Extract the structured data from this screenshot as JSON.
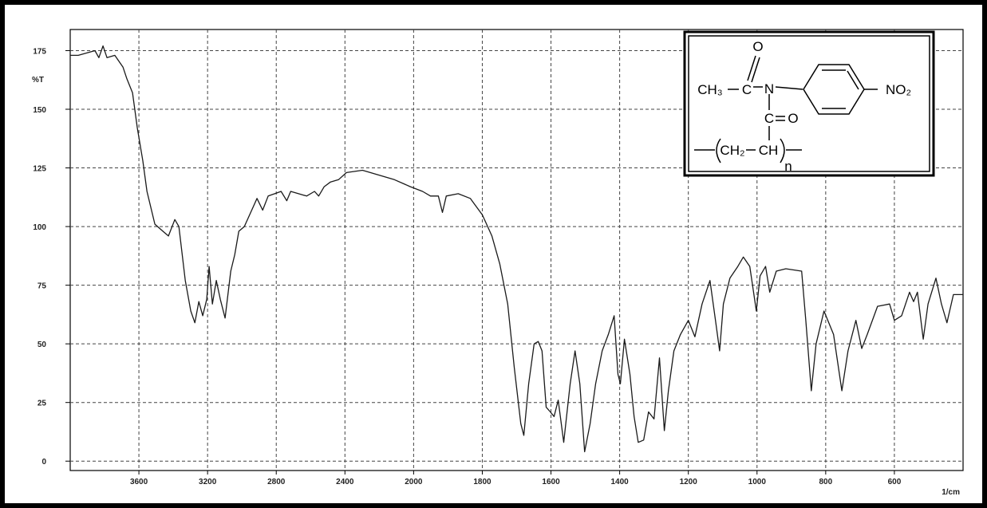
{
  "chart_data": {
    "type": "line",
    "y_label": "%T",
    "x_label": "1/cm",
    "xlim": [
      4000,
      400
    ],
    "x_break": 2000,
    "x_break_expansion": 2,
    "ylim": [
      -4,
      184
    ],
    "xticks": [
      3600,
      3200,
      2800,
      2400,
      2000,
      1800,
      1600,
      1400,
      1200,
      1000,
      800,
      600
    ],
    "yticks": [
      0,
      25,
      50,
      75,
      100,
      125,
      150,
      175
    ],
    "grid": true,
    "color": "#1a1a1a",
    "x": [
      4000,
      3953,
      3856,
      3833,
      3809,
      3786,
      3740,
      3693,
      3670,
      3637,
      3609,
      3577,
      3553,
      3507,
      3460,
      3428,
      3391,
      3367,
      3330,
      3298,
      3274,
      3251,
      3228,
      3205,
      3191,
      3172,
      3149,
      3126,
      3098,
      3065,
      3042,
      3018,
      2986,
      2949,
      2912,
      2879,
      2847,
      2809,
      2772,
      2739,
      2716,
      2670,
      2623,
      2577,
      2553,
      2521,
      2484,
      2437,
      2391,
      2298,
      2205,
      2112,
      2019,
      1974,
      1951,
      1928,
      1916,
      1905,
      1870,
      1835,
      1800,
      1772,
      1749,
      1726,
      1707,
      1688,
      1679,
      1665,
      1649,
      1637,
      1626,
      1614,
      1602,
      1591,
      1579,
      1563,
      1544,
      1530,
      1516,
      1502,
      1486,
      1470,
      1451,
      1433,
      1416,
      1405,
      1398,
      1386,
      1370,
      1358,
      1346,
      1330,
      1316,
      1300,
      1284,
      1270,
      1258,
      1242,
      1223,
      1200,
      1181,
      1160,
      1137,
      1121,
      1109,
      1098,
      1079,
      1056,
      1040,
      1021,
      1002,
      991,
      975,
      963,
      944,
      916,
      870,
      858,
      842,
      828,
      805,
      777,
      753,
      735,
      712,
      695,
      679,
      649,
      614,
      600,
      579,
      556,
      544,
      533,
      516,
      502,
      479,
      463,
      447,
      428,
      400
    ],
    "values": [
      173,
      173,
      175,
      172,
      177,
      172,
      173,
      168,
      163,
      157,
      142,
      128,
      115,
      101,
      98,
      96,
      103,
      100,
      77,
      64,
      59,
      68,
      62,
      69,
      83,
      67,
      77,
      69,
      61,
      81,
      88,
      98,
      100,
      106,
      112,
      107,
      113,
      114,
      115,
      111,
      115,
      114,
      113,
      115,
      113,
      117,
      119,
      120,
      123,
      124,
      122,
      120,
      117,
      115,
      113,
      113,
      106,
      113,
      114,
      112,
      105,
      96,
      84,
      67,
      40,
      16,
      11,
      33,
      50,
      51,
      47,
      23,
      21,
      19,
      26,
      8,
      33,
      47,
      33,
      4,
      16,
      33,
      47,
      54,
      62,
      37,
      33,
      52,
      37,
      19,
      8,
      9,
      21,
      18,
      44,
      13,
      30,
      47,
      54,
      60,
      53,
      67,
      77,
      60,
      47,
      67,
      78,
      83,
      87,
      83,
      64,
      79,
      83,
      72,
      81,
      82,
      81,
      60,
      30,
      50,
      64,
      54,
      30,
      47,
      60,
      48,
      54,
      66,
      67,
      60,
      62,
      72,
      68,
      72,
      52,
      67,
      78,
      67,
      59,
      71,
      71
    ]
  },
  "structure": {
    "o_carbonyl_1": "O",
    "ch3": "CH₃",
    "c_1": "C",
    "n": "N",
    "no2": "NO₂",
    "c_2": "C",
    "o_carbonyl_2": "O",
    "ch2": "CH₂",
    "ch": "CH",
    "repeat": "n"
  }
}
